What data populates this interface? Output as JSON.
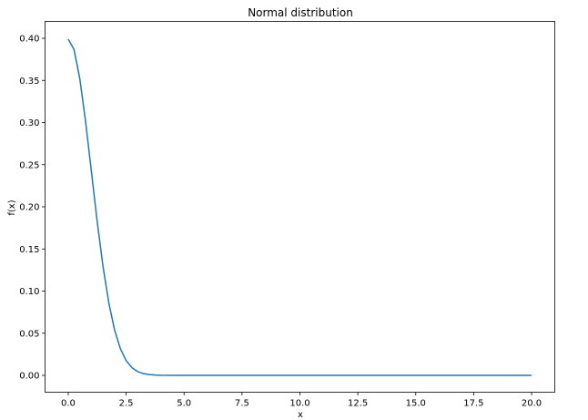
{
  "chart_data": {
    "type": "line",
    "title": "Normal distribution",
    "xlabel": "x",
    "ylabel": "f(x)",
    "xlim": [
      -1.0,
      21.0
    ],
    "ylim": [
      -0.02,
      0.42
    ],
    "x_ticks": [
      0.0,
      2.5,
      5.0,
      7.5,
      10.0,
      12.5,
      15.0,
      17.5,
      20.0
    ],
    "x_tick_labels": [
      "0.0",
      "2.5",
      "5.0",
      "7.5",
      "10.0",
      "12.5",
      "15.0",
      "17.5",
      "20.0"
    ],
    "y_ticks": [
      0.0,
      0.05,
      0.1,
      0.15,
      0.2,
      0.25,
      0.3,
      0.35,
      0.4
    ],
    "y_tick_labels": [
      "0.00",
      "0.05",
      "0.10",
      "0.15",
      "0.20",
      "0.25",
      "0.30",
      "0.35",
      "0.40"
    ],
    "grid": false,
    "line_color": "#1f77b4",
    "series": [
      {
        "x": [
          0.0,
          0.25,
          0.5,
          0.75,
          1.0,
          1.25,
          1.5,
          1.75,
          2.0,
          2.25,
          2.5,
          2.75,
          3.0,
          3.25,
          3.5,
          3.75,
          4.0,
          4.5,
          5.0,
          6.0,
          7.5,
          10.0,
          12.5,
          15.0,
          17.5,
          20.0
        ],
        "y": [
          0.3989,
          0.3867,
          0.3521,
          0.3011,
          0.242,
          0.1826,
          0.1295,
          0.0863,
          0.054,
          0.0317,
          0.0175,
          0.0091,
          0.0044,
          0.002,
          0.0009,
          0.0004,
          0.0001,
          0.0,
          0.0,
          0.0,
          0.0,
          0.0,
          0.0,
          0.0,
          0.0,
          0.0
        ]
      }
    ]
  }
}
